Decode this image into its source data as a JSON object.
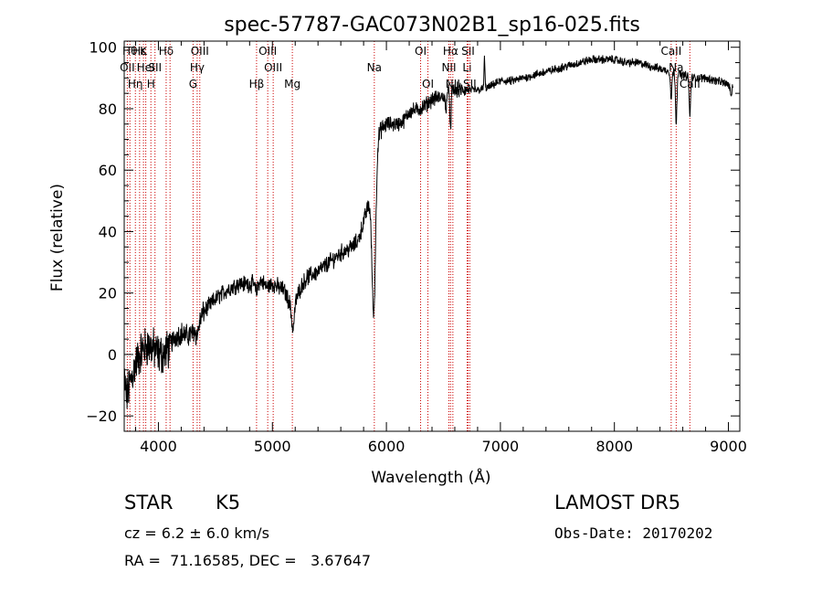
{
  "chart_data": {
    "type": "line",
    "title": "spec-57787-GAC073N02B1_sp16-025.fits",
    "xlabel": "Wavelength (Å)",
    "ylabel": "Flux (relative)",
    "xlim": [
      3700,
      9100
    ],
    "ylim": [
      -25,
      102
    ],
    "xticks": [
      4000,
      5000,
      6000,
      7000,
      8000,
      9000
    ],
    "yticks": [
      -20,
      0,
      20,
      40,
      60,
      80,
      100
    ],
    "grid": false,
    "series_color": "#000000",
    "line_color": "#cc0000",
    "anchors": [
      [
        3700,
        -8
      ],
      [
        3720,
        -14
      ],
      [
        3760,
        -8
      ],
      [
        3800,
        -3
      ],
      [
        3850,
        1
      ],
      [
        3900,
        3
      ],
      [
        3950,
        2
      ],
      [
        4000,
        0
      ],
      [
        4050,
        0
      ],
      [
        4100,
        3
      ],
      [
        4150,
        6
      ],
      [
        4200,
        7
      ],
      [
        4250,
        6
      ],
      [
        4300,
        7
      ],
      [
        4350,
        10
      ],
      [
        4400,
        14
      ],
      [
        4500,
        18
      ],
      [
        4600,
        21
      ],
      [
        4700,
        23
      ],
      [
        4800,
        23
      ],
      [
        4850,
        23
      ],
      [
        4900,
        24
      ],
      [
        4950,
        22
      ],
      [
        5000,
        23
      ],
      [
        5050,
        22
      ],
      [
        5100,
        21
      ],
      [
        5150,
        17
      ],
      [
        5180,
        13
      ],
      [
        5200,
        17
      ],
      [
        5250,
        22
      ],
      [
        5300,
        25
      ],
      [
        5400,
        27
      ],
      [
        5500,
        30
      ],
      [
        5600,
        33
      ],
      [
        5700,
        35
      ],
      [
        5750,
        37
      ],
      [
        5800,
        43
      ],
      [
        5850,
        50
      ],
      [
        5880,
        57
      ],
      [
        5900,
        65
      ],
      [
        5920,
        71
      ],
      [
        5950,
        73
      ],
      [
        6000,
        75
      ],
      [
        6100,
        75
      ],
      [
        6150,
        76
      ],
      [
        6200,
        79
      ],
      [
        6300,
        80
      ],
      [
        6400,
        83
      ],
      [
        6500,
        84
      ],
      [
        6560,
        86
      ],
      [
        6600,
        86
      ],
      [
        6700,
        86
      ],
      [
        6800,
        86
      ],
      [
        6900,
        87
      ],
      [
        7000,
        89
      ],
      [
        7100,
        89
      ],
      [
        7200,
        90
      ],
      [
        7300,
        91
      ],
      [
        7400,
        92
      ],
      [
        7500,
        93
      ],
      [
        7600,
        94
      ],
      [
        7700,
        95
      ],
      [
        7800,
        96
      ],
      [
        7900,
        96
      ],
      [
        8000,
        96
      ],
      [
        8100,
        95
      ],
      [
        8200,
        95
      ],
      [
        8300,
        94
      ],
      [
        8400,
        93
      ],
      [
        8500,
        92
      ],
      [
        8600,
        91
      ],
      [
        8700,
        90
      ],
      [
        8800,
        90
      ],
      [
        8900,
        89
      ],
      [
        9000,
        88
      ],
      [
        9030,
        84
      ]
    ],
    "dips": [
      [
        5890,
        -47,
        16
      ],
      [
        5180,
        -5,
        12
      ],
      [
        6563,
        -14,
        5
      ],
      [
        6520,
        -6,
        5
      ],
      [
        8498,
        -9,
        6
      ],
      [
        8542,
        -16,
        6
      ],
      [
        8662,
        -13,
        6
      ],
      [
        4860,
        -3,
        10
      ],
      [
        4340,
        -3,
        12
      ]
    ],
    "spikes": [
      [
        6860,
        10,
        4
      ],
      [
        9040,
        4,
        6
      ]
    ],
    "lines": [
      {
        "x": 3727,
        "label": "OII",
        "row": 1
      },
      {
        "x": 3750,
        "label": "Hθ",
        "row": 0
      },
      {
        "x": 3798,
        "label": "Hη",
        "row": 2
      },
      {
        "x": 3835,
        "label": "Hε",
        "row": 0
      },
      {
        "x": 3869,
        "label": "K",
        "row": 0
      },
      {
        "x": 3889,
        "label": "HeI",
        "row": 1
      },
      {
        "x": 3934,
        "label": "H",
        "row": 2
      },
      {
        "x": 3970,
        "label": "SII",
        "row": 1
      },
      {
        "x": 4068,
        "label": "Hδ",
        "row": 0
      },
      {
        "x": 4102,
        "label": "",
        "row": 0
      },
      {
        "x": 4304,
        "label": "G",
        "row": 2
      },
      {
        "x": 4340,
        "label": "Hγ",
        "row": 1
      },
      {
        "x": 4363,
        "label": "OIII",
        "row": 0
      },
      {
        "x": 4861,
        "label": "Hβ",
        "row": 2
      },
      {
        "x": 4959,
        "label": "OIII",
        "row": 0
      },
      {
        "x": 5007,
        "label": "OIII",
        "row": 1
      },
      {
        "x": 5175,
        "label": "Mg",
        "row": 2
      },
      {
        "x": 5894,
        "label": "Na",
        "row": 1
      },
      {
        "x": 6300,
        "label": "OI",
        "row": 0
      },
      {
        "x": 6364,
        "label": "OI",
        "row": 2
      },
      {
        "x": 6548,
        "label": "NII",
        "row": 1
      },
      {
        "x": 6563,
        "label": "Hα",
        "row": 0
      },
      {
        "x": 6583,
        "label": "NII",
        "row": 2
      },
      {
        "x": 6708,
        "label": "Li",
        "row": 1
      },
      {
        "x": 6716,
        "label": "SII",
        "row": 0
      },
      {
        "x": 6731,
        "label": "SII",
        "row": 2
      },
      {
        "x": 8498,
        "label": "CaII",
        "row": 0
      },
      {
        "x": 8542,
        "label": "Na",
        "row": 1
      },
      {
        "x": 8662,
        "label": "CaII",
        "row": 2
      }
    ]
  },
  "info": {
    "classification": "STAR",
    "subclass": "K5",
    "survey": "LAMOST DR5",
    "redshift_line": "cz = 6.2 ± 6.0 km/s",
    "obs_date_line": "Obs-Date: 20170202",
    "coords_line": "RA =  71.16585, DEC =   3.67647"
  }
}
